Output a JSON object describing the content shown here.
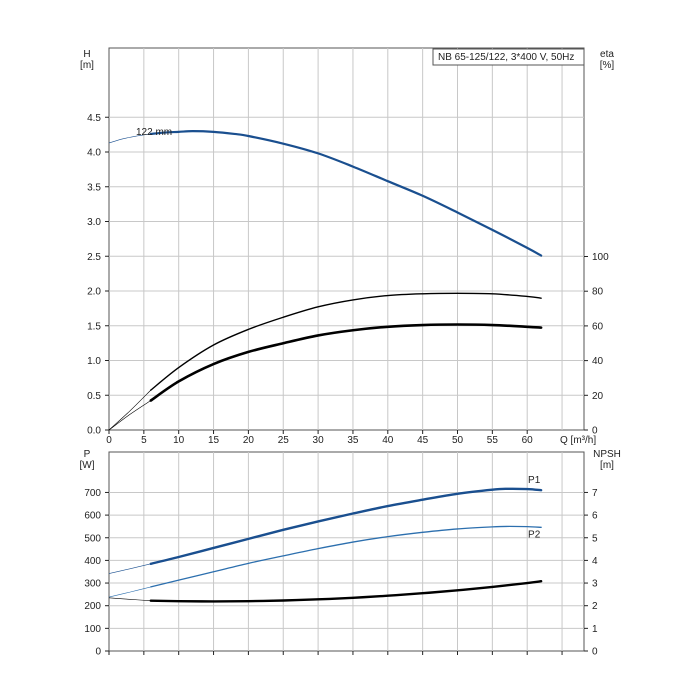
{
  "title": "NB 65-125/122, 3*400 V, 50Hz",
  "colors": {
    "blue": "#1a4f8f",
    "blue_light": "#2c6fae",
    "black": "#000000",
    "grid": "#c8c8c8"
  },
  "chart_data": [
    {
      "type": "line",
      "title": "NB 65-125/122, 3*400 V, 50Hz",
      "xlabel": "Q [m³/h]",
      "ylabel_left": "H\n[m]",
      "ylabel_right": "eta\n[%]",
      "x_ticks": [
        "0",
        "5",
        "10",
        "15",
        "20",
        "25",
        "30",
        "35",
        "40",
        "45",
        "50",
        "55",
        "60"
      ],
      "y_left_ticks": [
        "0.0",
        "0.5",
        "1.0",
        "1.5",
        "2.0",
        "2.5",
        "3.0",
        "3.5",
        "4.0",
        "4.5"
      ],
      "y_right_ticks": [
        "0",
        "20",
        "40",
        "60",
        "80",
        "100"
      ],
      "xlim": [
        0,
        68
      ],
      "ylim_left": [
        0,
        5.5
      ],
      "ylim_right": [
        0,
        100
      ],
      "grid": true,
      "annotations": [
        "122 mm"
      ],
      "series": [
        {
          "name": "122 mm",
          "axis": "left",
          "color": "blue",
          "x": [
            0,
            2,
            4,
            6,
            8,
            10,
            12,
            15,
            18,
            20,
            25,
            30,
            35,
            40,
            45,
            50,
            55,
            60,
            62
          ],
          "y": [
            4.13,
            4.19,
            4.23,
            4.26,
            4.28,
            4.29,
            4.3,
            4.29,
            4.26,
            4.23,
            4.12,
            3.98,
            3.79,
            3.58,
            3.37,
            3.13,
            2.88,
            2.62,
            2.51
          ],
          "operating_from": 6
        },
        {
          "axis": "right",
          "color": "black",
          "x": [
            0,
            3,
            6,
            10,
            15,
            20,
            25,
            30,
            35,
            40,
            45,
            50,
            55,
            60,
            62
          ],
          "y": [
            0,
            11,
            23,
            36,
            49,
            58,
            65,
            71,
            75,
            77.5,
            78.5,
            78.8,
            78.5,
            77,
            76
          ],
          "operating_from": 6
        },
        {
          "axis": "right",
          "color": "black",
          "thick": true,
          "x": [
            0,
            3,
            6,
            10,
            15,
            20,
            25,
            30,
            35,
            40,
            45,
            50,
            55,
            60,
            62
          ],
          "y": [
            0,
            9,
            17,
            28,
            38,
            45,
            50,
            54.5,
            57.5,
            59.5,
            60.5,
            60.8,
            60.5,
            59.5,
            59
          ],
          "operating_from": 6
        }
      ]
    },
    {
      "type": "line",
      "xlabel": "",
      "ylabel_left": "P\n[W]",
      "ylabel_right": "NPSH\n[m]",
      "y_left_ticks": [
        "0",
        "100",
        "200",
        "300",
        "400",
        "500",
        "600",
        "700"
      ],
      "y_right_ticks": [
        "0",
        "1",
        "2",
        "3",
        "4",
        "5",
        "6",
        "7"
      ],
      "xlim": [
        0,
        68
      ],
      "ylim_left": [
        0,
        870
      ],
      "ylim_right": [
        0,
        8.7
      ],
      "grid": true,
      "series": [
        {
          "name": "P1",
          "axis": "left",
          "color": "blue",
          "thick": true,
          "x": [
            0,
            3,
            6,
            10,
            15,
            20,
            25,
            30,
            35,
            40,
            45,
            50,
            55,
            57,
            60,
            62
          ],
          "y": [
            342,
            363,
            385,
            415,
            455,
            495,
            535,
            572,
            607,
            640,
            668,
            694,
            712,
            716,
            715,
            710
          ]
        },
        {
          "name": "P2",
          "axis": "left",
          "color": "blue_light",
          "x": [
            0,
            3,
            6,
            10,
            15,
            20,
            25,
            30,
            35,
            40,
            45,
            50,
            55,
            57,
            60,
            62
          ],
          "y": [
            238,
            260,
            283,
            313,
            350,
            387,
            420,
            452,
            481,
            505,
            524,
            539,
            548,
            550,
            549,
            546
          ]
        },
        {
          "name": "NPSH",
          "axis": "right",
          "color": "black",
          "thick": true,
          "x": [
            0,
            3,
            6,
            10,
            15,
            20,
            25,
            30,
            35,
            40,
            45,
            50,
            55,
            60,
            62
          ],
          "y": [
            2.35,
            2.28,
            2.22,
            2.2,
            2.19,
            2.2,
            2.23,
            2.28,
            2.35,
            2.44,
            2.55,
            2.68,
            2.83,
            3.0,
            3.08
          ]
        }
      ]
    }
  ]
}
